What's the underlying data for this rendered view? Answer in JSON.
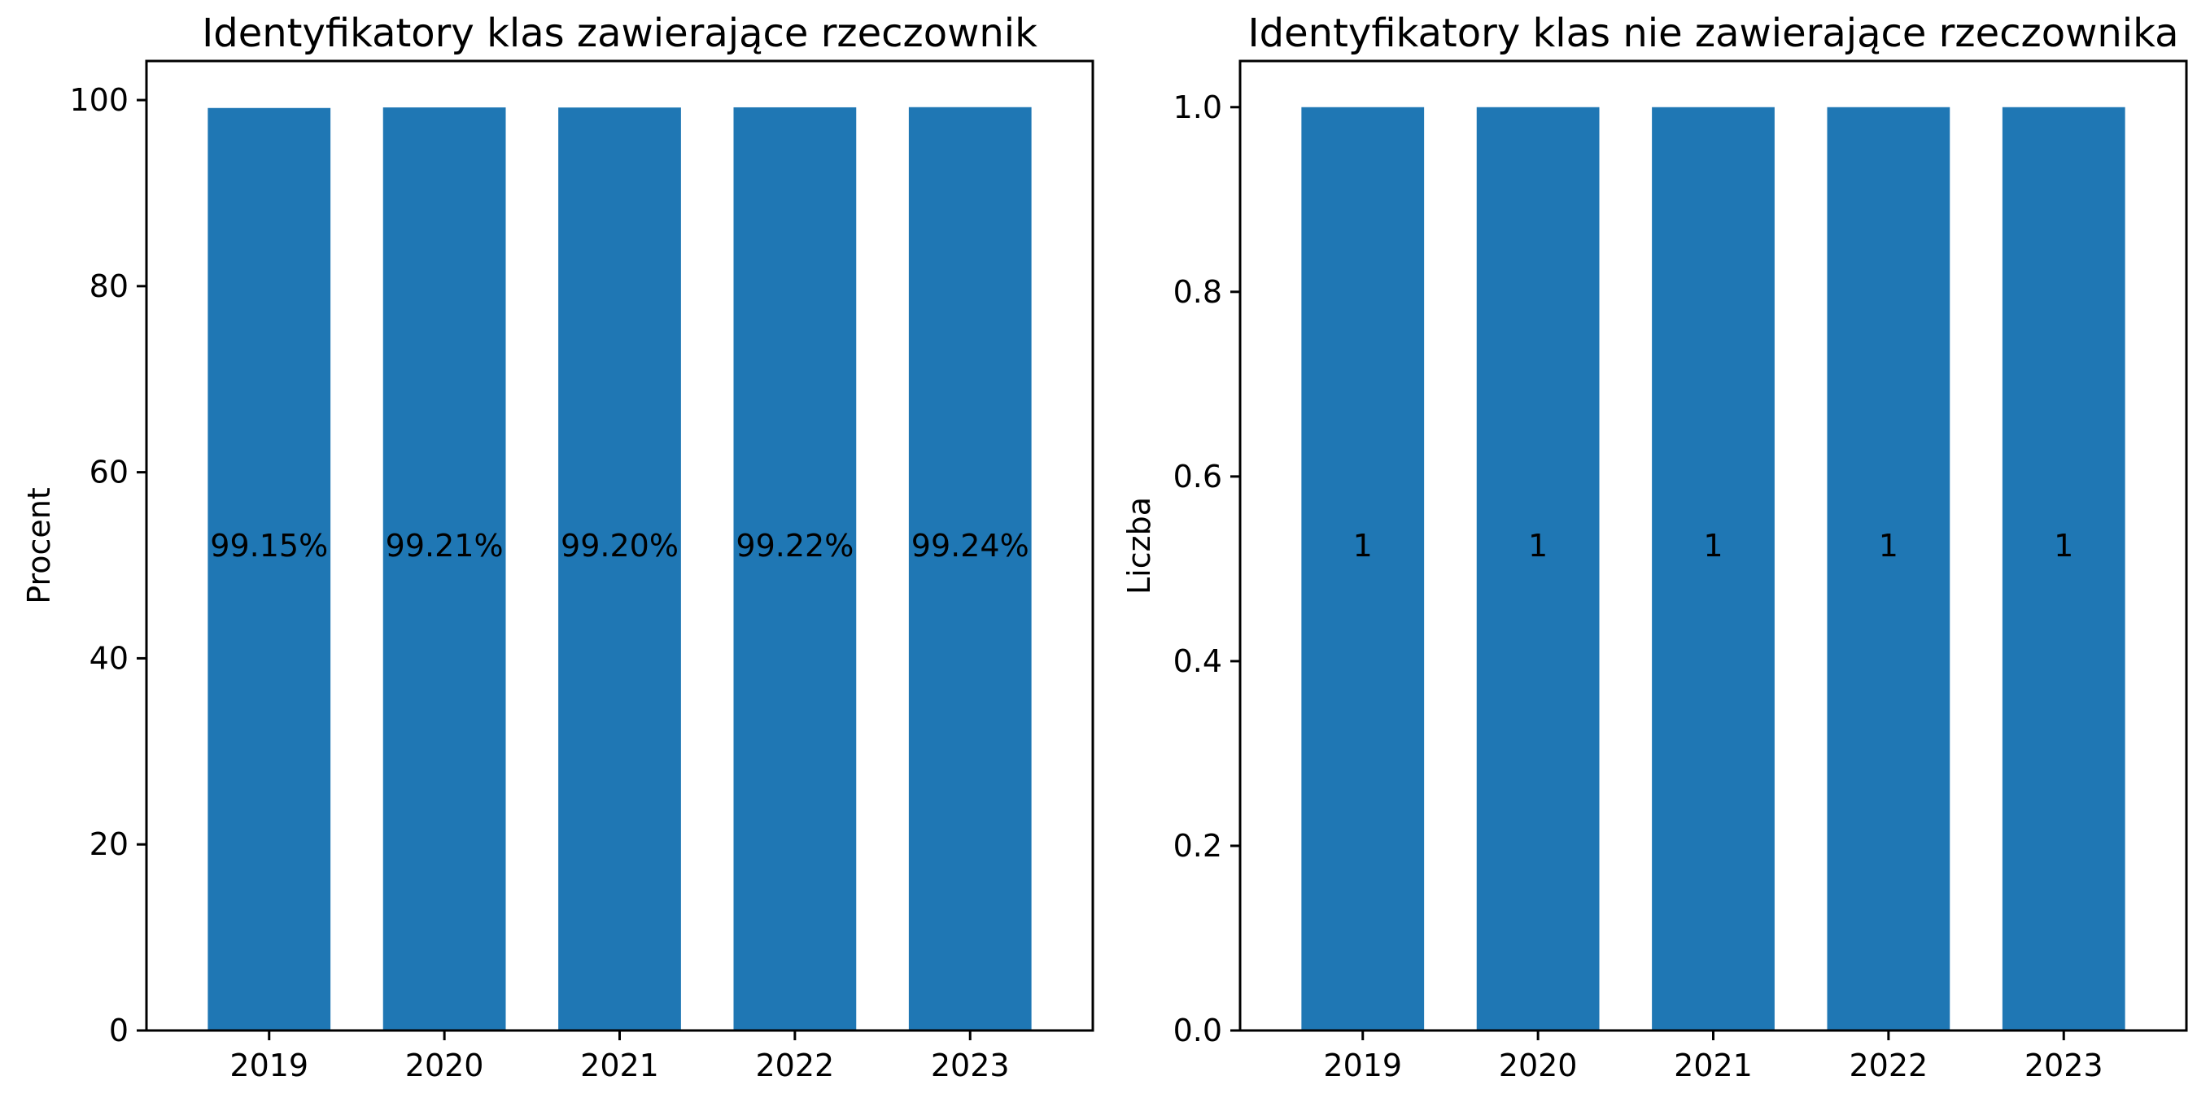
{
  "chart_data": [
    {
      "type": "bar",
      "title": "Identyfikatory klas zawierające rzeczownik",
      "xlabel": "",
      "ylabel": "Procent",
      "categories": [
        "2019",
        "2020",
        "2021",
        "2022",
        "2023"
      ],
      "values": [
        99.15,
        99.21,
        99.2,
        99.22,
        99.24
      ],
      "data_labels": [
        "99.15%",
        "99.21%",
        "99.20%",
        "99.22%",
        "99.24%"
      ],
      "ylim": [
        0,
        104.2
      ],
      "yticks": [
        0,
        20,
        40,
        60,
        80,
        100
      ],
      "ytick_labels": [
        "0",
        "20",
        "40",
        "60",
        "80",
        "100"
      ],
      "bar_color": "#1f77b4",
      "grid": false
    },
    {
      "type": "bar",
      "title": "Identyfikatory klas nie zawierające rzeczownika",
      "xlabel": "",
      "ylabel": "Liczba",
      "categories": [
        "2019",
        "2020",
        "2021",
        "2022",
        "2023"
      ],
      "values": [
        1,
        1,
        1,
        1,
        1
      ],
      "data_labels": [
        "1",
        "1",
        "1",
        "1",
        "1"
      ],
      "ylim": [
        0,
        1.05
      ],
      "yticks": [
        0.0,
        0.2,
        0.4,
        0.6,
        0.8,
        1.0
      ],
      "ytick_labels": [
        "0.0",
        "0.2",
        "0.4",
        "0.6",
        "0.8",
        "1.0"
      ],
      "bar_color": "#1f77b4",
      "grid": false
    }
  ]
}
